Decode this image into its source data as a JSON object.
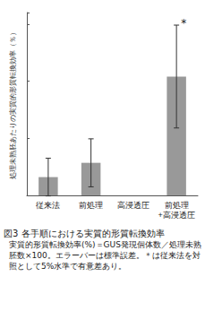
{
  "chart_data": {
    "type": "bar",
    "title": "図3 各手順における実質的形質転換効率",
    "subtitle": "実質的形質転換効率(%)＝GUS発現個体数／処理未熟胚数×100。エラーバーは標準誤差。＊は従来法を対照として5%水準で有意差あり。",
    "y_label": "処理未熟胚あたりの実質的形質転換効率（％）",
    "categories": [
      "従来法",
      "前処理",
      "高浸透圧",
      "前処理\n+高浸透圧"
    ],
    "values": [
      0.32,
      0.57,
      0,
      2.08
    ],
    "errors": [
      0.33,
      0.42,
      0,
      0.9
    ],
    "significance": [
      null,
      null,
      null,
      "*"
    ],
    "color": "#999999",
    "ylim": [
      0,
      3.2
    ],
    "yticks": [
      0,
      1,
      2,
      3
    ],
    "tick_labels": "x",
    "grid": false
  }
}
